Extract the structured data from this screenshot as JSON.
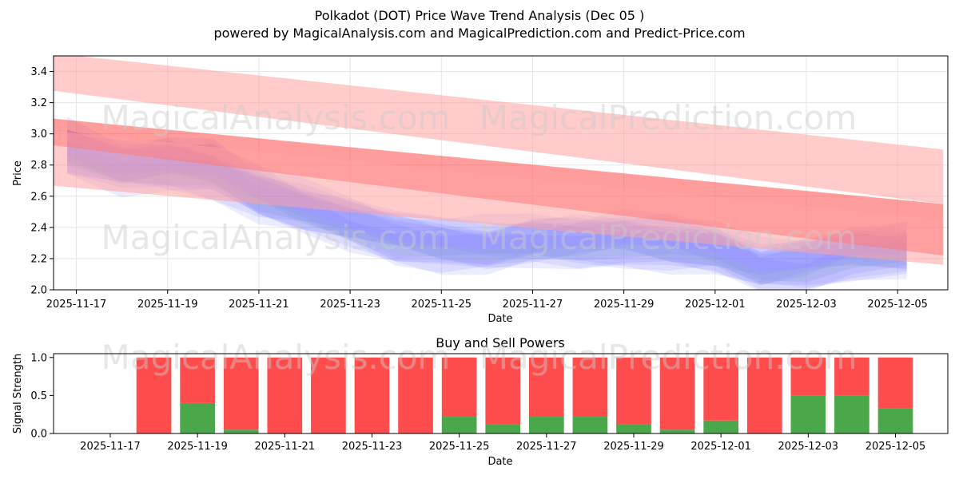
{
  "header": {
    "title": "Polkadot (DOT) Price Wave Trend Analysis (Dec 05 )",
    "subtitle": "powered by MagicalAnalysis.com and MagicalPrediction.com and Predict-Price.com"
  },
  "watermarks": [
    "MagicalAnalysis.com",
    "MagicalPrediction.com",
    "MagicalAnalysis.com",
    "MagicalPrediction.com",
    "MagicalAnalysis.com",
    "MagicalPrediction.com"
  ],
  "colors": {
    "blue": "#6a6aff",
    "red": "#ff4d4d",
    "light_red": "#ffa0a0",
    "green": "#4aa84a",
    "grid": "#e5e5e5"
  },
  "chart_data": [
    {
      "type": "area",
      "title": "",
      "xlabel": "Date",
      "ylabel": "Price",
      "xlim": [
        -0.5,
        19.1
      ],
      "ylim": [
        2.0,
        3.5
      ],
      "x_ticks": [
        "2025-11-17",
        "2025-11-19",
        "2025-11-21",
        "2025-11-23",
        "2025-11-25",
        "2025-11-27",
        "2025-11-29",
        "2025-12-01",
        "2025-12-03",
        "2025-12-05"
      ],
      "x_tick_positions": [
        0,
        2,
        4,
        6,
        8,
        10,
        12,
        14,
        16,
        18
      ],
      "y_ticks": [
        "2.0",
        "2.2",
        "2.4",
        "2.6",
        "2.8",
        "3.0",
        "3.2",
        "3.4"
      ],
      "y_tick_values": [
        2.0,
        2.2,
        2.4,
        2.6,
        2.8,
        3.0,
        3.2,
        3.4
      ],
      "price_series": {
        "name": "Price wave ensemble (center)",
        "x": [
          -0.2,
          1,
          2,
          3,
          4,
          5,
          6,
          7,
          8,
          9,
          10,
          11,
          12,
          13,
          14,
          15,
          16,
          17,
          18.2
        ],
        "values": [
          2.9,
          2.78,
          2.8,
          2.77,
          2.62,
          2.52,
          2.42,
          2.33,
          2.3,
          2.28,
          2.3,
          2.3,
          2.32,
          2.3,
          2.26,
          2.14,
          2.16,
          2.24,
          2.26
        ]
      },
      "trend_bands": [
        {
          "name": "Upper trend band",
          "x0": -0.6,
          "x1": 19.0,
          "start": [
            3.28,
            3.52
          ],
          "end": [
            2.55,
            2.9
          ],
          "color": "light_red"
        },
        {
          "name": "Middle trend band",
          "x0": -0.6,
          "x1": 19.0,
          "start": [
            2.93,
            3.1
          ],
          "end": [
            2.22,
            2.55
          ],
          "color": "red"
        },
        {
          "name": "Lower trend band",
          "x0": -0.6,
          "x1": 19.0,
          "start": [
            2.67,
            3.02
          ],
          "end": [
            2.16,
            2.45
          ],
          "color": "light_red"
        }
      ]
    },
    {
      "type": "bar",
      "title": "Buy and Sell Powers",
      "xlabel": "Date",
      "ylabel": "Signal Strength",
      "xlim": [
        -1.3,
        19.2
      ],
      "ylim": [
        0,
        1.05
      ],
      "x_ticks": [
        "2025-11-17",
        "2025-11-19",
        "2025-11-21",
        "2025-11-23",
        "2025-11-25",
        "2025-11-27",
        "2025-11-29",
        "2025-12-01",
        "2025-12-03",
        "2025-12-05"
      ],
      "x_tick_positions": [
        0,
        2,
        4,
        6,
        8,
        10,
        12,
        14,
        16,
        18
      ],
      "y_ticks": [
        "0.0",
        "0.5",
        "1.0"
      ],
      "y_tick_values": [
        0,
        0.5,
        1.0
      ],
      "x": [
        1,
        2,
        3,
        4,
        5,
        6,
        7,
        8,
        9,
        10,
        11,
        12,
        13,
        14,
        15,
        16,
        17,
        18
      ],
      "series": [
        {
          "name": "Buy",
          "color": "green",
          "values": [
            0.0,
            0.4,
            0.05,
            0.0,
            0.0,
            0.0,
            0.0,
            0.22,
            0.12,
            0.22,
            0.22,
            0.12,
            0.05,
            0.17,
            0.0,
            0.5,
            0.5,
            0.33
          ]
        },
        {
          "name": "Sell",
          "color": "red",
          "values": [
            1.0,
            0.6,
            0.95,
            1.0,
            1.0,
            1.0,
            1.0,
            0.78,
            0.88,
            0.78,
            0.78,
            0.88,
            0.95,
            0.83,
            1.0,
            0.5,
            0.5,
            0.67
          ]
        }
      ]
    }
  ]
}
